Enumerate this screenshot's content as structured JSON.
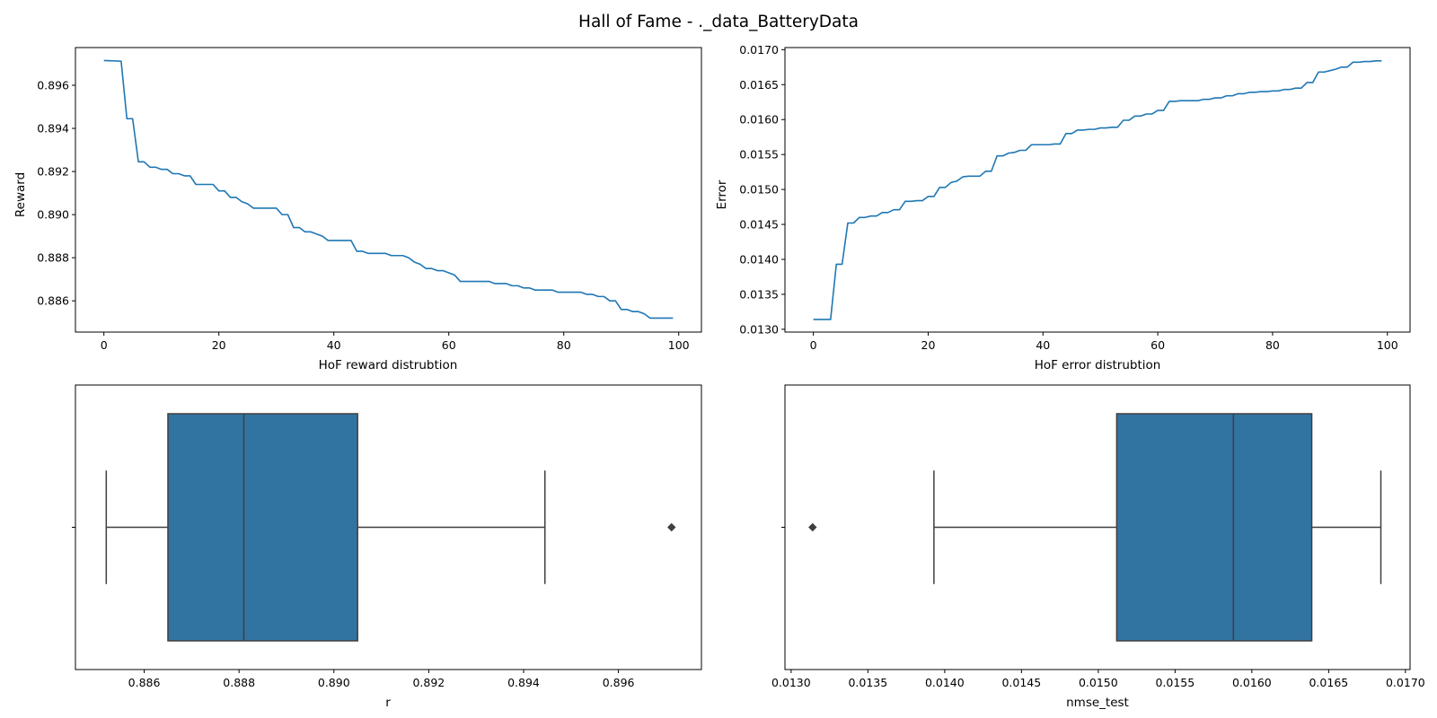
{
  "figure": {
    "title": "Hall of Fame - ._data_BatteryData"
  },
  "colors": {
    "line": "#1f77b4",
    "box": "#3274a1",
    "box_edge": "#3f3f3f",
    "axes": "#000000"
  },
  "chart_data": [
    {
      "type": "line",
      "xlabel": "HoF reward distrubtion",
      "ylabel": "Reward",
      "xlim": [
        -4.95,
        103.95
      ],
      "ylim": [
        0.88455,
        0.89775
      ],
      "xticks": [
        0,
        20,
        40,
        60,
        80,
        100
      ],
      "xtick_labels": [
        "0",
        "20",
        "40",
        "60",
        "80",
        "100"
      ],
      "yticks": [
        0.886,
        0.888,
        0.89,
        0.892,
        0.894,
        0.896
      ],
      "ytick_labels": [
        "0.886",
        "0.888",
        "0.890",
        "0.892",
        "0.894",
        "0.896"
      ],
      "grid": false,
      "x": [
        0,
        1,
        2,
        3,
        4,
        5,
        6,
        7,
        8,
        9,
        10,
        11,
        12,
        13,
        14,
        15,
        16,
        17,
        18,
        19,
        20,
        21,
        22,
        23,
        24,
        25,
        26,
        27,
        28,
        29,
        30,
        31,
        32,
        33,
        34,
        35,
        36,
        37,
        38,
        39,
        40,
        41,
        42,
        43,
        44,
        45,
        46,
        47,
        48,
        49,
        50,
        51,
        52,
        53,
        54,
        55,
        56,
        57,
        58,
        59,
        60,
        61,
        62,
        63,
        64,
        65,
        66,
        67,
        68,
        69,
        70,
        71,
        72,
        73,
        74,
        75,
        76,
        77,
        78,
        79,
        80,
        81,
        82,
        83,
        84,
        85,
        86,
        87,
        88,
        89,
        90,
        91,
        92,
        93,
        94,
        95,
        96,
        97,
        98,
        99
      ],
      "y": [
        0.89715,
        0.89714,
        0.89713,
        0.89712,
        0.89445,
        0.89445,
        0.89245,
        0.89245,
        0.8922,
        0.8922,
        0.8921,
        0.8921,
        0.8919,
        0.8919,
        0.8918,
        0.8918,
        0.8914,
        0.8914,
        0.8914,
        0.8914,
        0.8911,
        0.8911,
        0.8908,
        0.8908,
        0.8906,
        0.8905,
        0.8903,
        0.8903,
        0.8903,
        0.8903,
        0.8903,
        0.89,
        0.89,
        0.8894,
        0.8894,
        0.8892,
        0.8892,
        0.8891,
        0.889,
        0.8888,
        0.8888,
        0.8888,
        0.8888,
        0.8888,
        0.8883,
        0.8883,
        0.8882,
        0.8882,
        0.8882,
        0.8882,
        0.8881,
        0.8881,
        0.8881,
        0.888,
        0.8878,
        0.8877,
        0.8875,
        0.8875,
        0.8874,
        0.8874,
        0.8873,
        0.8872,
        0.8869,
        0.8869,
        0.8869,
        0.8869,
        0.8869,
        0.8869,
        0.8868,
        0.8868,
        0.8868,
        0.8867,
        0.8867,
        0.8866,
        0.8866,
        0.8865,
        0.8865,
        0.8865,
        0.8865,
        0.8864,
        0.8864,
        0.8864,
        0.8864,
        0.8864,
        0.8863,
        0.8863,
        0.8862,
        0.8862,
        0.886,
        0.886,
        0.8856,
        0.8856,
        0.8855,
        0.8855,
        0.8854,
        0.8852,
        0.8852,
        0.8852,
        0.8852,
        0.8852
      ]
    },
    {
      "type": "line",
      "xlabel": "HoF error distrubtion",
      "ylabel": "Error",
      "xlim": [
        -4.95,
        103.95
      ],
      "ylim": [
        0.01296,
        0.01703
      ],
      "xticks": [
        0,
        20,
        40,
        60,
        80,
        100
      ],
      "xtick_labels": [
        "0",
        "20",
        "40",
        "60",
        "80",
        "100"
      ],
      "yticks": [
        0.013,
        0.0135,
        0.014,
        0.0145,
        0.015,
        0.0155,
        0.016,
        0.0165,
        0.017
      ],
      "ytick_labels": [
        "0.0130",
        "0.0135",
        "0.0140",
        "0.0145",
        "0.0150",
        "0.0155",
        "0.0160",
        "0.0165",
        "0.0170"
      ],
      "grid": false,
      "x": [
        0,
        1,
        2,
        3,
        4,
        5,
        6,
        7,
        8,
        9,
        10,
        11,
        12,
        13,
        14,
        15,
        16,
        17,
        18,
        19,
        20,
        21,
        22,
        23,
        24,
        25,
        26,
        27,
        28,
        29,
        30,
        31,
        32,
        33,
        34,
        35,
        36,
        37,
        38,
        39,
        40,
        41,
        42,
        43,
        44,
        45,
        46,
        47,
        48,
        49,
        50,
        51,
        52,
        53,
        54,
        55,
        56,
        57,
        58,
        59,
        60,
        61,
        62,
        63,
        64,
        65,
        66,
        67,
        68,
        69,
        70,
        71,
        72,
        73,
        74,
        75,
        76,
        77,
        78,
        79,
        80,
        81,
        82,
        83,
        84,
        85,
        86,
        87,
        88,
        89,
        90,
        91,
        92,
        93,
        94,
        95,
        96,
        97,
        98,
        99
      ],
      "y": [
        0.01314,
        0.01314,
        0.01314,
        0.01314,
        0.01393,
        0.01393,
        0.01452,
        0.01452,
        0.0146,
        0.0146,
        0.01462,
        0.01462,
        0.01467,
        0.01467,
        0.01471,
        0.01471,
        0.01483,
        0.01483,
        0.01484,
        0.01484,
        0.0149,
        0.0149,
        0.01503,
        0.01503,
        0.0151,
        0.01512,
        0.01518,
        0.01519,
        0.01519,
        0.01519,
        0.01526,
        0.01526,
        0.01548,
        0.01548,
        0.01552,
        0.01553,
        0.01556,
        0.01556,
        0.01564,
        0.01564,
        0.01564,
        0.01564,
        0.01565,
        0.01565,
        0.0158,
        0.0158,
        0.01585,
        0.01585,
        0.01586,
        0.01586,
        0.01588,
        0.01588,
        0.01589,
        0.01589,
        0.01599,
        0.01599,
        0.01605,
        0.01605,
        0.01608,
        0.01608,
        0.01613,
        0.01613,
        0.01626,
        0.01626,
        0.01627,
        0.01627,
        0.01627,
        0.01627,
        0.01629,
        0.01629,
        0.01631,
        0.01631,
        0.01634,
        0.01634,
        0.01637,
        0.01637,
        0.01639,
        0.01639,
        0.0164,
        0.0164,
        0.01641,
        0.01641,
        0.01643,
        0.01643,
        0.01645,
        0.01645,
        0.01653,
        0.01653,
        0.01668,
        0.01668,
        0.0167,
        0.01672,
        0.01675,
        0.01675,
        0.01682,
        0.01682,
        0.01683,
        0.01683,
        0.01684,
        0.01684
      ]
    },
    {
      "type": "box",
      "xlabel": "r",
      "ylabel": "",
      "xlim": [
        0.88455,
        0.89775
      ],
      "xticks": [
        0.886,
        0.888,
        0.89,
        0.892,
        0.894,
        0.896
      ],
      "xtick_labels": [
        "0.886",
        "0.888",
        "0.890",
        "0.892",
        "0.894",
        "0.896"
      ],
      "whisker_low": 0.8852,
      "q1": 0.8865,
      "median": 0.8881,
      "q3": 0.8905,
      "whisker_high": 0.89445,
      "outliers": [
        0.89712
      ],
      "grid": false
    },
    {
      "type": "box",
      "xlabel": "nmse_test",
      "ylabel": "",
      "xlim": [
        0.01296,
        0.01703
      ],
      "xticks": [
        0.013,
        0.0135,
        0.014,
        0.0145,
        0.015,
        0.0155,
        0.016,
        0.0165,
        0.017
      ],
      "xtick_labels": [
        "0.0130",
        "0.0135",
        "0.0140",
        "0.0145",
        "0.0150",
        "0.0155",
        "0.0160",
        "0.0165",
        "0.0170"
      ],
      "whisker_low": 0.01393,
      "q1": 0.01512,
      "median": 0.01588,
      "q3": 0.01639,
      "whisker_high": 0.01684,
      "outliers": [
        0.01314
      ],
      "grid": false
    }
  ]
}
